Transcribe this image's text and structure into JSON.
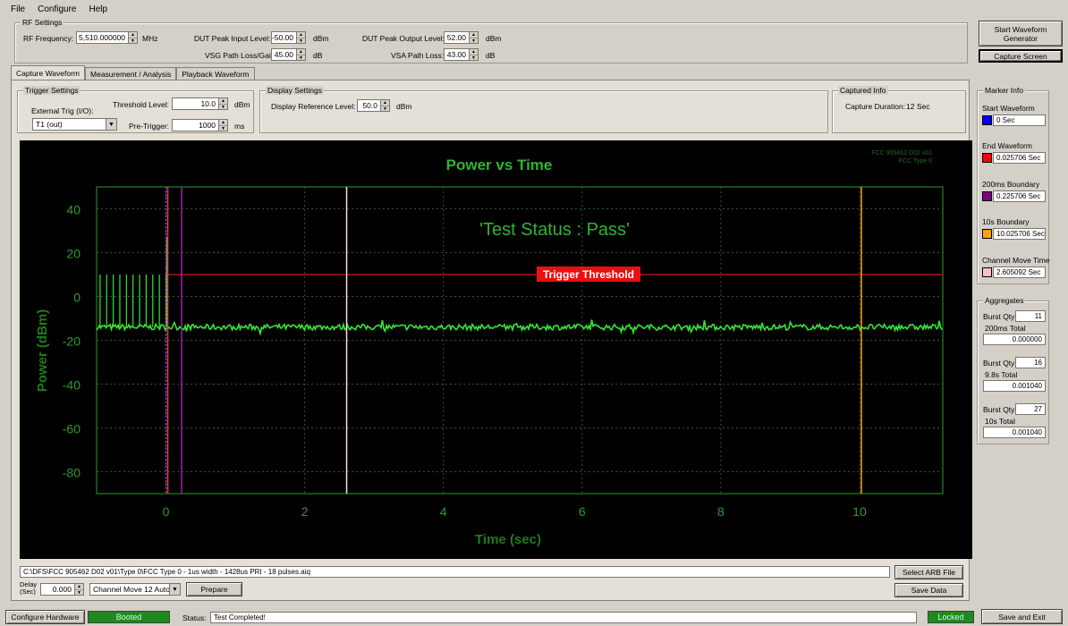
{
  "menu": [
    "File",
    "Configure",
    "Help"
  ],
  "rf": {
    "group_title": "RF Settings",
    "freq_label": "RF Frequency:",
    "freq_value": "5,510.000000",
    "freq_unit": "MHz",
    "dut_in_label": "DUT Peak Input Level:",
    "dut_in_value": "-50.00",
    "dut_in_unit": "dBm",
    "vsg_label": "VSG Path Loss/Gain:",
    "vsg_value": "45.00",
    "vsg_unit": "dB",
    "dut_out_label": "DUT Peak Output Level:",
    "dut_out_value": "52.00",
    "dut_out_unit": "dBm",
    "vsa_label": "VSA Path Loss:",
    "vsa_value": "43.00",
    "vsa_unit": "dB"
  },
  "top_buttons": {
    "start_waveform": "Start Waveform Generator",
    "capture_screen": "Capture Screen"
  },
  "tabs": [
    "Capture Waveform",
    "Measurement / Analysis",
    "Playback Waveform"
  ],
  "trigger": {
    "group_title": "Trigger Settings",
    "ext_label": "External Trig (I/O):",
    "ext_value": "T1 (out)",
    "threshold_label": "Threshold Level:",
    "threshold_value": "10.0",
    "threshold_unit": "dBm",
    "pretrigger_label": "Pre-Trigger:",
    "pretrigger_value": "1000",
    "pretrigger_unit": "ms"
  },
  "display": {
    "group_title": "Display Settings",
    "ref_label": "Display Reference Level:",
    "ref_value": "50.0",
    "ref_unit": "dBm"
  },
  "captured": {
    "group_title": "Captured Info",
    "duration_label": "Capture Duration:",
    "duration_value": "12 Sec"
  },
  "markers": {
    "group_title": "Marker Info",
    "items": [
      {
        "label": "Start Waveform",
        "value": "0 Sec",
        "color": "#0000ff"
      },
      {
        "label": "End Waveform",
        "value": "0.025706 Sec",
        "color": "#ff0000"
      },
      {
        "label": "200ms Boundary",
        "value": "0.225706 Sec",
        "color": "#800080"
      },
      {
        "label": "10s Boundary",
        "value": "10.025706 Sec",
        "color": "#ffa500"
      },
      {
        "label": "Channel Move Time",
        "value": "2.605092 Sec",
        "color": "#ffc0cb"
      }
    ]
  },
  "aggregates": {
    "group_title": "Aggregates",
    "items": [
      {
        "qty_label": "Burst Qty:",
        "qty": "11",
        "total_label": "200ms Total",
        "total": "0.000000"
      },
      {
        "qty_label": "Burst Qty:",
        "qty": "16",
        "total_label": "9.8s Total",
        "total": "0.001040"
      },
      {
        "qty_label": "Burst Qty:",
        "qty": "27",
        "total_label": "10s Total",
        "total": "0.001040"
      }
    ]
  },
  "chart_data": {
    "type": "line",
    "title": "Power vs Time",
    "xlabel": "Time (sec)",
    "ylabel": "Power (dBm)",
    "xlim": [
      -1,
      11.2
    ],
    "ylim": [
      -90,
      50
    ],
    "xticks": [
      0,
      2,
      4,
      6,
      8,
      10
    ],
    "yticks": [
      40,
      20,
      0,
      -20,
      -40,
      -60,
      -80
    ],
    "grid": true,
    "status_text": "'Test Status : Pass'",
    "threshold_label": "Trigger Threshold",
    "threshold_value": 10,
    "noise_floor": -14,
    "corner_note": [
      "FCC 905462 D02 v01",
      "FCC Type 0"
    ],
    "pulses": {
      "start": -0.95,
      "end": 0.0,
      "count": 11,
      "peak": 10,
      "main_peak": 27,
      "main_peak_time": 0.0
    },
    "colors": {
      "trace": "#35e635",
      "axis": "#2f9a2f",
      "grid": "#2a5a2a",
      "threshold": "#ff2020"
    },
    "markers": [
      {
        "name": "start",
        "x": 0.0,
        "color": "#3060ff"
      },
      {
        "name": "end",
        "x": 0.025706,
        "color": "#ff3030"
      },
      {
        "name": "200ms",
        "x": 0.225706,
        "color": "#a020a0"
      },
      {
        "name": "channel-move",
        "x": 2.605092,
        "color": "#ffd8e0"
      },
      {
        "name": "10s",
        "x": 10.025706,
        "color": "#ffa500"
      }
    ]
  },
  "bottom": {
    "file_path": "C:\\DFS\\FCC 905462 D02 v01\\Type 0\\FCC Type 0 - 1us width - 1428us PRI - 18 pulses.aiq",
    "select_arb": "Select ARB File",
    "save_data": "Save Data",
    "delay_label": "Delay (Sec)",
    "delay_value": "0.000",
    "channel_value": "Channel Move 12 Auto",
    "prepare": "Prepare"
  },
  "statusbar": {
    "configure_hw": "Configure Hardware",
    "booted": "Booted",
    "status_label": "Status:",
    "status_value": "Test Completed!",
    "locked": "Locked",
    "save_exit": "Save and Exit"
  }
}
